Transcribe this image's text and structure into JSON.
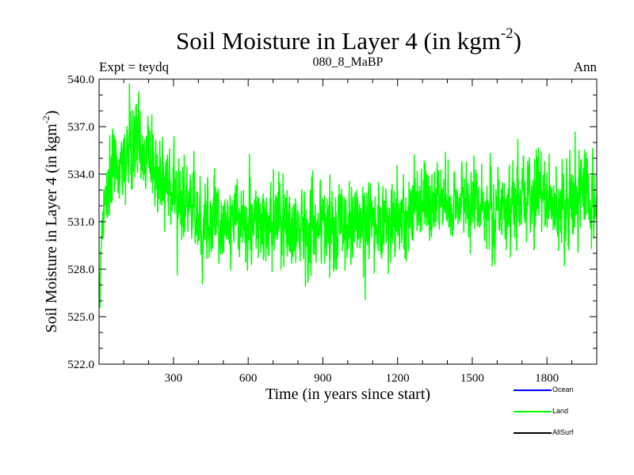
{
  "chart_data": {
    "type": "line",
    "title_main": "Soil Moisture in Layer 4 (in kgm",
    "title_sup": "-2",
    "title_close": ")",
    "subtitle": "080_8_MaBP",
    "left_label": "Expt = teydq",
    "right_label": "Ann",
    "xlabel": "Time (in years since start)",
    "ylabel_main": "Soil Moisture in Layer 4 (in kgm",
    "ylabel_sup": "-2",
    "ylabel_close": ")",
    "xlim": [
      1,
      2000
    ],
    "ylim": [
      522.0,
      540.0
    ],
    "xticks": [
      300,
      600,
      900,
      1200,
      1500,
      1800
    ],
    "xtick_labels": [
      "300",
      "600",
      "900",
      "1200",
      "1500",
      "1800"
    ],
    "yticks": [
      522,
      525,
      528,
      531,
      534,
      537,
      540
    ],
    "ytick_labels": [
      "522.0",
      "525.0",
      "528.0",
      "531.0",
      "534.0",
      "537.0",
      "540.0"
    ],
    "grid": false,
    "legend_position": "bottom-right",
    "series": [
      {
        "name": "Ocean",
        "color": "#0000ff",
        "x": [],
        "y": []
      },
      {
        "name": "Land",
        "color": "#00ff00",
        "mean_profile": {
          "x": [
            1,
            10,
            40,
            80,
            120,
            160,
            200,
            250,
            300,
            350,
            400,
            500,
            600,
            700,
            800,
            900,
            1000,
            1100,
            1150,
            1200,
            1250,
            1300,
            1400,
            1500,
            1600,
            1650,
            1700,
            1750,
            1800,
            1850,
            1900,
            1950,
            2000
          ],
          "y": [
            525.5,
            530.5,
            533.8,
            534.5,
            535.2,
            535.8,
            535.0,
            533.8,
            533.0,
            532.0,
            531.2,
            531.0,
            531.0,
            530.6,
            530.8,
            530.8,
            530.7,
            531.0,
            531.0,
            531.2,
            532.0,
            532.2,
            532.2,
            532.2,
            532.0,
            531.8,
            532.3,
            533.0,
            532.2,
            531.8,
            532.2,
            533.0,
            532.8
          ]
        },
        "std": 1.3,
        "max": {
          "x": 160,
          "y": 539.2
        },
        "min": {
          "x": 1070,
          "y": 526.1
        }
      },
      {
        "name": "AllSurf",
        "color": "#000000",
        "x": [],
        "y": []
      }
    ]
  }
}
